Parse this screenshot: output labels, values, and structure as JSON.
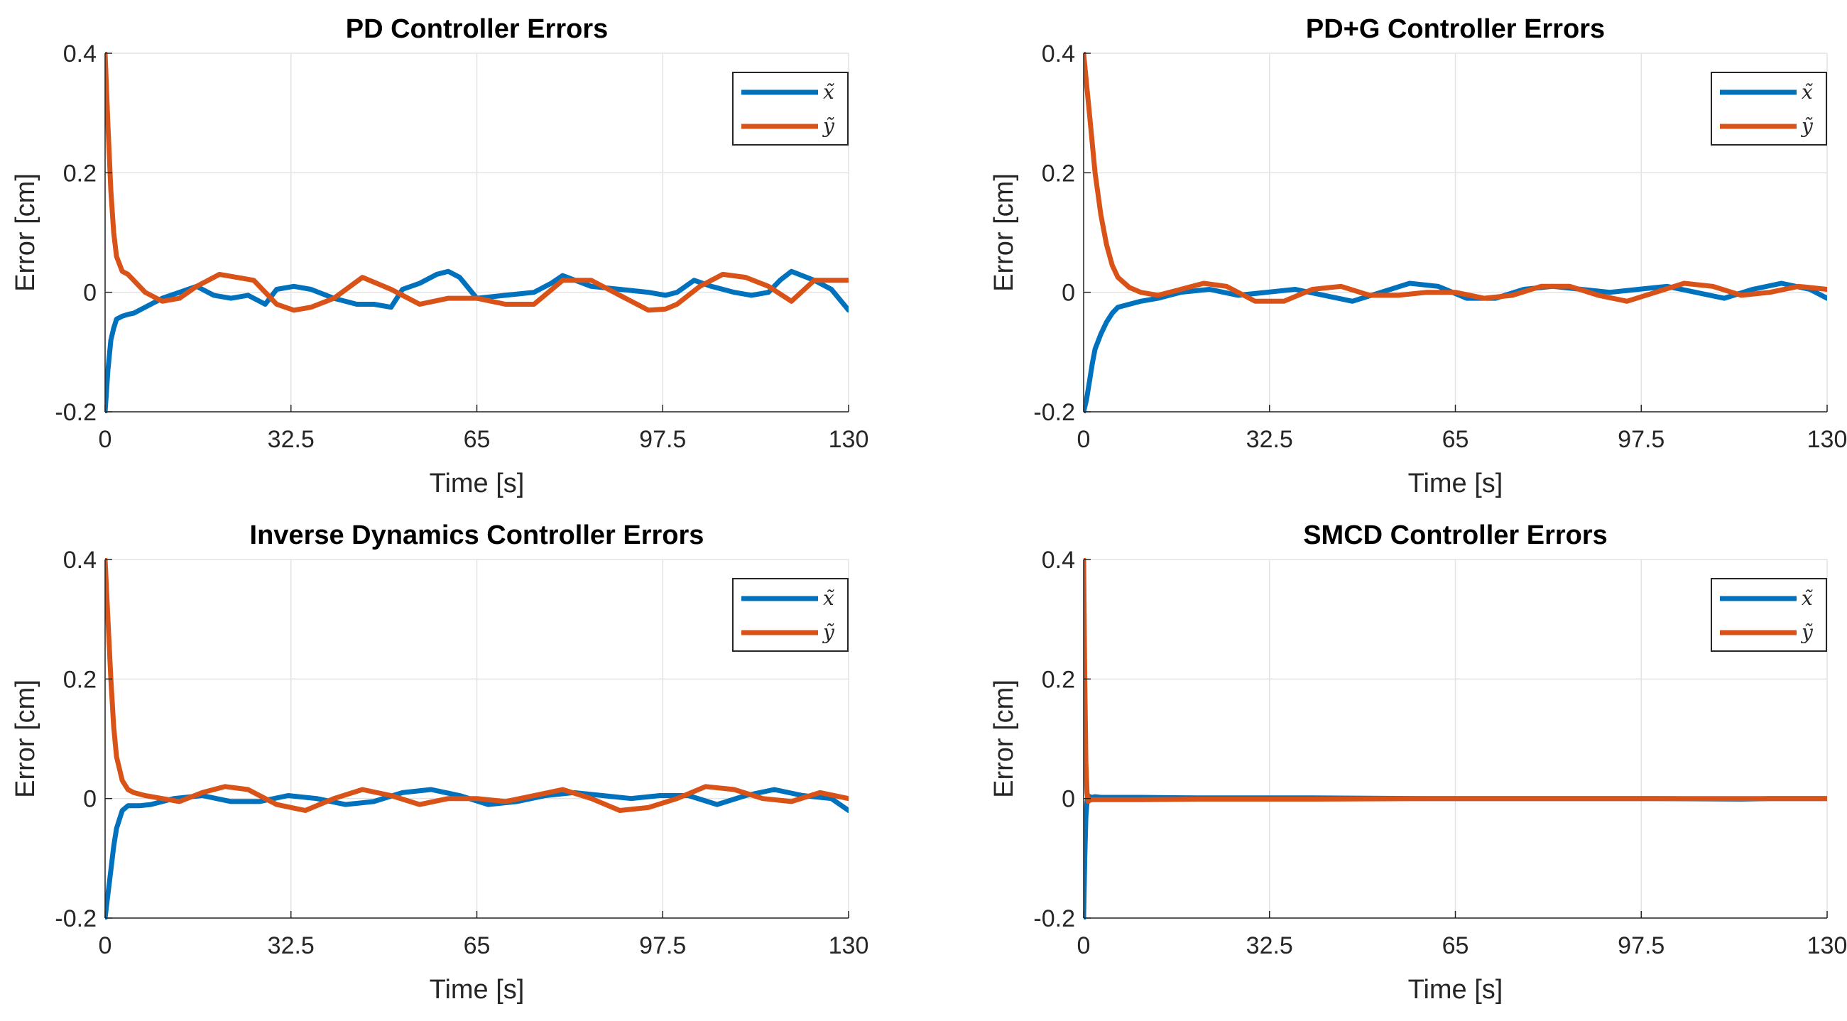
{
  "chart_data": [
    {
      "type": "line",
      "title": "PD Controller Errors",
      "xlabel": "Time [s]",
      "ylabel": "Error [cm]",
      "xlim": [
        0,
        130
      ],
      "ylim": [
        -0.2,
        0.4
      ],
      "xticks": [
        "0",
        "32.5",
        "65",
        "97.5",
        "130"
      ],
      "yticks": [
        "-0.2",
        "0",
        "0.2",
        "0.4"
      ],
      "grid": true,
      "legend_position": "top-right",
      "series": [
        {
          "name": "x̃",
          "color": "#0072BD",
          "x": [
            0,
            0.5,
            1,
            1.5,
            2,
            3,
            4,
            5,
            7,
            10,
            13,
            16,
            19,
            22,
            25,
            27,
            28,
            30,
            33,
            36,
            40,
            44,
            47,
            50,
            52,
            55,
            58,
            60,
            62,
            65,
            70,
            75,
            78,
            80,
            85,
            90,
            95,
            98,
            100,
            103,
            106,
            110,
            113,
            116,
            118,
            120,
            124,
            127,
            130
          ],
          "values": [
            -0.2,
            -0.13,
            -0.08,
            -0.06,
            -0.045,
            -0.04,
            -0.037,
            -0.035,
            -0.025,
            -0.01,
            0.0,
            0.01,
            -0.005,
            -0.01,
            -0.005,
            -0.015,
            -0.02,
            0.005,
            0.01,
            0.005,
            -0.01,
            -0.02,
            -0.02,
            -0.025,
            0.005,
            0.015,
            0.03,
            0.035,
            0.025,
            -0.01,
            -0.005,
            0.0,
            0.015,
            0.028,
            0.01,
            0.005,
            0.0,
            -0.005,
            0.0,
            0.02,
            0.01,
            0.0,
            -0.005,
            0.0,
            0.02,
            0.035,
            0.02,
            0.005,
            -0.03
          ]
        },
        {
          "name": "ỹ",
          "color": "#D95319",
          "x": [
            0,
            0.5,
            1,
            1.5,
            2,
            3,
            4,
            5,
            7,
            10,
            13,
            16,
            20,
            23,
            26,
            28,
            30,
            33,
            36,
            40,
            45,
            50,
            55,
            60,
            65,
            70,
            75,
            80,
            85,
            90,
            95,
            98,
            100,
            104,
            108,
            112,
            116,
            120,
            124,
            127,
            130
          ],
          "values": [
            0.4,
            0.28,
            0.17,
            0.1,
            0.06,
            0.035,
            0.03,
            0.02,
            0.0,
            -0.015,
            -0.01,
            0.01,
            0.03,
            0.025,
            0.02,
            0.0,
            -0.02,
            -0.03,
            -0.025,
            -0.01,
            0.025,
            0.005,
            -0.02,
            -0.01,
            -0.01,
            -0.02,
            -0.02,
            0.02,
            0.02,
            -0.005,
            -0.03,
            -0.028,
            -0.02,
            0.01,
            0.03,
            0.025,
            0.01,
            -0.015,
            0.02,
            0.02,
            0.02
          ]
        }
      ]
    },
    {
      "type": "line",
      "title": "PD+G Controller Errors",
      "xlabel": "Time [s]",
      "ylabel": "Error [cm]",
      "xlim": [
        0,
        130
      ],
      "ylim": [
        -0.2,
        0.4
      ],
      "xticks": [
        "0",
        "32.5",
        "65",
        "97.5",
        "130"
      ],
      "yticks": [
        "-0.2",
        "0",
        "0.2",
        "0.4"
      ],
      "grid": true,
      "legend_position": "top-right",
      "series": [
        {
          "name": "x̃",
          "color": "#0072BD",
          "x": [
            0,
            0.5,
            1,
            1.5,
            2,
            3,
            4,
            5,
            6,
            8,
            10,
            13,
            17,
            22,
            27,
            32,
            37,
            42,
            47,
            52,
            57,
            62,
            67,
            72,
            77,
            82,
            87,
            92,
            97,
            102,
            107,
            112,
            117,
            122,
            127,
            130
          ],
          "values": [
            -0.2,
            -0.18,
            -0.15,
            -0.12,
            -0.095,
            -0.07,
            -0.05,
            -0.035,
            -0.025,
            -0.02,
            -0.015,
            -0.01,
            0.0,
            0.005,
            -0.005,
            0.0,
            0.005,
            -0.005,
            -0.015,
            0.0,
            0.015,
            0.01,
            -0.01,
            -0.01,
            0.005,
            0.01,
            0.005,
            0.0,
            0.005,
            0.01,
            0.0,
            -0.01,
            0.005,
            0.015,
            0.005,
            -0.01
          ]
        },
        {
          "name": "ỹ",
          "color": "#D95319",
          "x": [
            0,
            0.5,
            1,
            1.5,
            2,
            3,
            4,
            5,
            6,
            8,
            10,
            13,
            17,
            21,
            25,
            30,
            35,
            40,
            45,
            50,
            55,
            60,
            65,
            70,
            75,
            80,
            85,
            90,
            95,
            100,
            105,
            110,
            115,
            120,
            125,
            130
          ],
          "values": [
            0.4,
            0.35,
            0.3,
            0.25,
            0.2,
            0.13,
            0.08,
            0.045,
            0.025,
            0.008,
            0.0,
            -0.005,
            0.005,
            0.015,
            0.01,
            -0.015,
            -0.015,
            0.005,
            0.01,
            -0.005,
            -0.005,
            0.0,
            0.0,
            -0.01,
            -0.005,
            0.01,
            0.01,
            -0.005,
            -0.015,
            0.0,
            0.015,
            0.01,
            -0.005,
            0.0,
            0.01,
            0.005
          ]
        }
      ]
    },
    {
      "type": "line",
      "title": "Inverse Dynamics Controller Errors",
      "xlabel": "Time [s]",
      "ylabel": "Error [cm]",
      "xlim": [
        0,
        130
      ],
      "ylim": [
        -0.2,
        0.4
      ],
      "xticks": [
        "0",
        "32.5",
        "65",
        "97.5",
        "130"
      ],
      "yticks": [
        "-0.2",
        "0",
        "0.2",
        "0.4"
      ],
      "grid": true,
      "legend_position": "top-right",
      "series": [
        {
          "name": "x̃",
          "color": "#0072BD",
          "x": [
            0,
            0.5,
            1,
            1.5,
            2,
            3,
            4,
            5,
            6,
            8,
            12,
            17,
            22,
            27,
            32,
            37,
            42,
            47,
            52,
            57,
            62,
            67,
            72,
            77,
            82,
            87,
            92,
            97,
            102,
            107,
            112,
            117,
            122,
            127,
            130
          ],
          "values": [
            -0.2,
            -0.16,
            -0.12,
            -0.08,
            -0.05,
            -0.02,
            -0.012,
            -0.012,
            -0.012,
            -0.01,
            0.0,
            0.005,
            -0.005,
            -0.005,
            0.005,
            0.0,
            -0.01,
            -0.005,
            0.01,
            0.015,
            0.005,
            -0.01,
            -0.005,
            0.005,
            0.01,
            0.005,
            0.0,
            0.005,
            0.005,
            -0.01,
            0.005,
            0.015,
            0.005,
            0.0,
            -0.02
          ]
        },
        {
          "name": "ỹ",
          "color": "#D95319",
          "x": [
            0,
            0.5,
            1,
            1.5,
            2,
            3,
            4,
            5,
            7,
            10,
            13,
            17,
            21,
            25,
            30,
            35,
            40,
            45,
            50,
            55,
            60,
            65,
            70,
            75,
            80,
            85,
            90,
            95,
            100,
            105,
            110,
            115,
            120,
            125,
            130
          ],
          "values": [
            0.4,
            0.3,
            0.2,
            0.12,
            0.07,
            0.03,
            0.015,
            0.01,
            0.005,
            0.0,
            -0.005,
            0.01,
            0.02,
            0.015,
            -0.01,
            -0.02,
            0.0,
            0.015,
            0.005,
            -0.01,
            0.0,
            0.0,
            -0.005,
            0.005,
            0.015,
            0.0,
            -0.02,
            -0.015,
            0.0,
            0.02,
            0.015,
            0.0,
            -0.005,
            0.01,
            0.0
          ]
        }
      ]
    },
    {
      "type": "line",
      "title": "SMCD Controller Errors",
      "xlabel": "Time [s]",
      "ylabel": "Error [cm]",
      "xlim": [
        0,
        130
      ],
      "ylim": [
        -0.2,
        0.4
      ],
      "xticks": [
        "0",
        "32.5",
        "65",
        "97.5",
        "130"
      ],
      "yticks": [
        "-0.2",
        "0",
        "0.2",
        "0.4"
      ],
      "grid": true,
      "legend_position": "top-right",
      "series": [
        {
          "name": "x̃",
          "color": "#0072BD",
          "x": [
            0,
            0.2,
            0.4,
            0.6,
            0.8,
            1,
            1.5,
            2,
            3,
            5,
            10,
            20,
            40,
            60,
            80,
            100,
            115,
            120,
            130
          ],
          "values": [
            -0.2,
            -0.1,
            -0.03,
            -0.005,
            0.005,
            0.003,
            0.002,
            0.003,
            0.002,
            0.002,
            0.002,
            0.001,
            0.001,
            0.0,
            0.0,
            0.0,
            -0.001,
            0.0,
            0.0
          ]
        },
        {
          "name": "ỹ",
          "color": "#D95319",
          "x": [
            0,
            0.2,
            0.4,
            0.6,
            0.8,
            1,
            1.5,
            2,
            3,
            5,
            10,
            20,
            40,
            60,
            80,
            100,
            120,
            130
          ],
          "values": [
            0.4,
            0.2,
            0.06,
            0.01,
            -0.005,
            -0.003,
            -0.002,
            -0.002,
            -0.002,
            -0.002,
            -0.002,
            -0.001,
            -0.001,
            0.0,
            0.0,
            0.0,
            0.0,
            0.0
          ]
        }
      ]
    }
  ]
}
